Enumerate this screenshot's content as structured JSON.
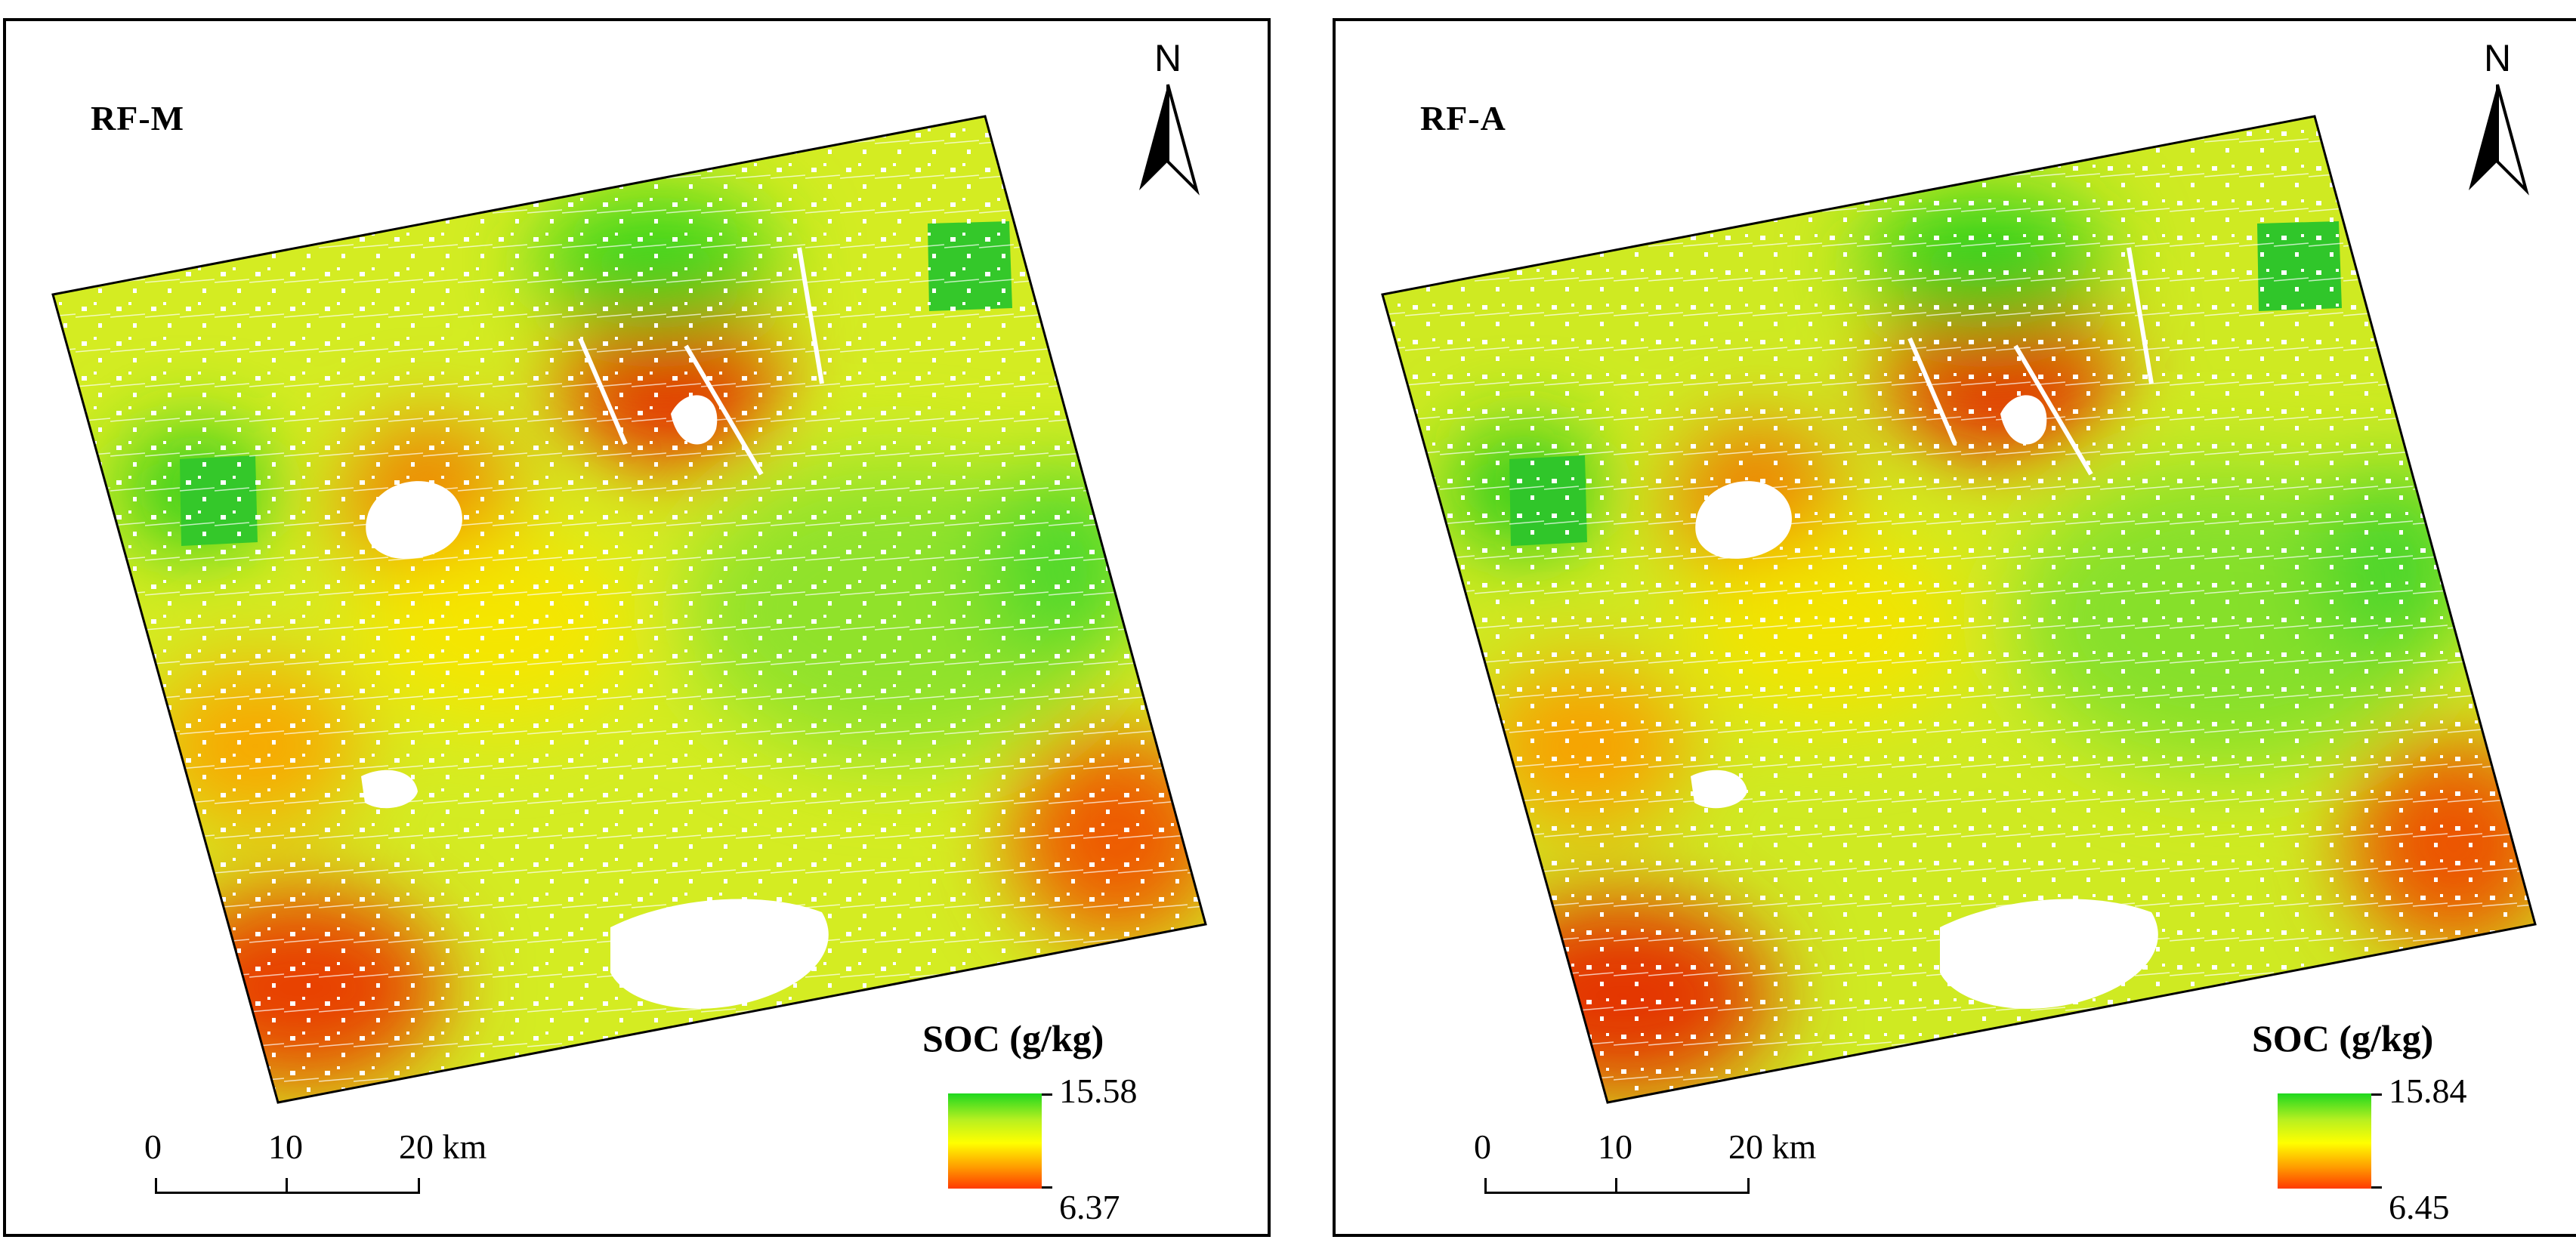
{
  "panels": [
    {
      "label": "RF-M",
      "north_letter": "N",
      "legend": {
        "title": "SOC (g/kg)",
        "max": "15.58",
        "min": "6.37"
      },
      "scale": {
        "ticks": [
          "0",
          "10",
          "20 km"
        ]
      },
      "colors": {
        "high": "#1fd81f",
        "mid": "#ffff00",
        "low": "#ff3a00"
      }
    },
    {
      "label": "RF-A",
      "north_letter": "N",
      "legend": {
        "title": "SOC (g/kg)",
        "max": "15.84",
        "min": "6.45"
      },
      "scale": {
        "ticks": [
          "0",
          "10",
          "20 km"
        ]
      },
      "colors": {
        "high": "#1fd81f",
        "mid": "#ffff00",
        "low": "#ff3a00"
      }
    }
  ]
}
